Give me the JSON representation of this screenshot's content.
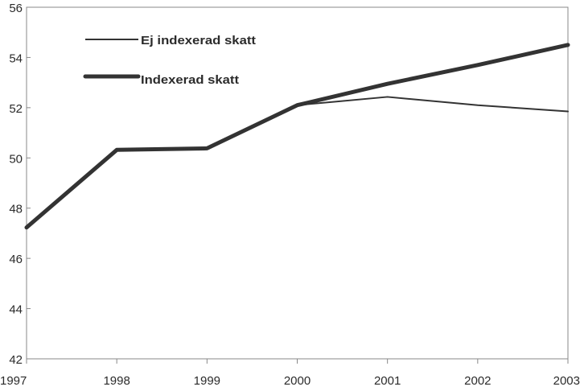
{
  "chart_data": {
    "type": "line",
    "title": "",
    "xlabel": "",
    "ylabel": "",
    "x": [
      "1997",
      "1998",
      "1999",
      "2000",
      "2001",
      "2002",
      "2003"
    ],
    "ylim": [
      42,
      56
    ],
    "yticks": [
      "42",
      "44",
      "46",
      "48",
      "50",
      "52",
      "54",
      "56"
    ],
    "grid": false,
    "legend_placement": "top-left",
    "series": [
      {
        "name": "Ej indexerad skatt",
        "values": [
          47.23,
          50.32,
          50.38,
          52.1,
          52.43,
          52.1,
          51.85
        ],
        "color": "#333333",
        "style": "thin"
      },
      {
        "name": "Indexerad skatt",
        "values": [
          47.23,
          50.32,
          50.38,
          52.1,
          52.95,
          53.7,
          54.5
        ],
        "color": "#333333",
        "style": "thick"
      }
    ]
  }
}
